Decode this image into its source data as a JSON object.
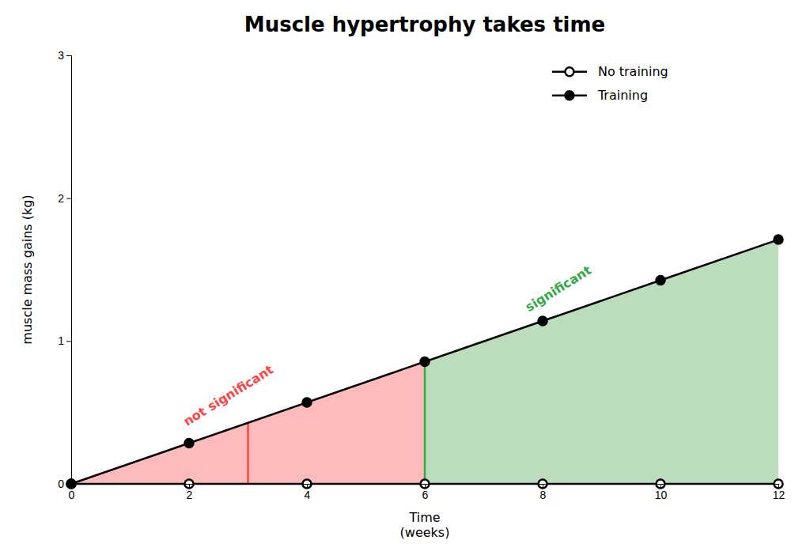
{
  "chart_data": {
    "type": "line",
    "title": "Muscle hypertrophy takes time",
    "xlabel": "Time\n(weeks)",
    "ylabel": "muscle mass gains (kg)",
    "x": [
      0,
      2,
      4,
      6,
      8,
      10,
      12
    ],
    "series": [
      {
        "name": "No training",
        "color": "#000000",
        "marker": "open-circle",
        "values": [
          0,
          0,
          0,
          0,
          0,
          0,
          0
        ]
      },
      {
        "name": "Training",
        "color": "#000000",
        "marker": "circle",
        "values": [
          0,
          0.285,
          0.57,
          0.855,
          1.14,
          1.425,
          1.71
        ]
      }
    ],
    "regions": [
      {
        "color": "#FFBBBB",
        "x": [
          0,
          6,
          6,
          0
        ],
        "y": [
          0,
          0.855,
          0,
          0
        ]
      },
      {
        "color": "#BBDDBB",
        "x": [
          6,
          12,
          12,
          6
        ],
        "y": [
          0.855,
          1.71,
          0,
          0
        ]
      }
    ],
    "reference_lines": [
      {
        "color": "#FF4444",
        "x": [
          3,
          3
        ],
        "y": [
          0,
          0.4275
        ]
      },
      {
        "color": "#33AA44",
        "x": [
          6,
          6
        ],
        "y": [
          0,
          0.855
        ]
      }
    ],
    "annotations": [
      {
        "text": "not significant",
        "x": 2.0,
        "y": 0.38,
        "color": "#FF4444"
      },
      {
        "text": "significant",
        "x": 7.8,
        "y": 1.18,
        "color": "#33AA44"
      }
    ],
    "xlim": [
      0,
      12
    ],
    "ylim": [
      0,
      3
    ],
    "xticks": [
      0,
      2,
      4,
      6,
      8,
      10,
      12
    ],
    "yticks": [
      0,
      1,
      2,
      3
    ],
    "grid": false,
    "legend": "upper right"
  }
}
